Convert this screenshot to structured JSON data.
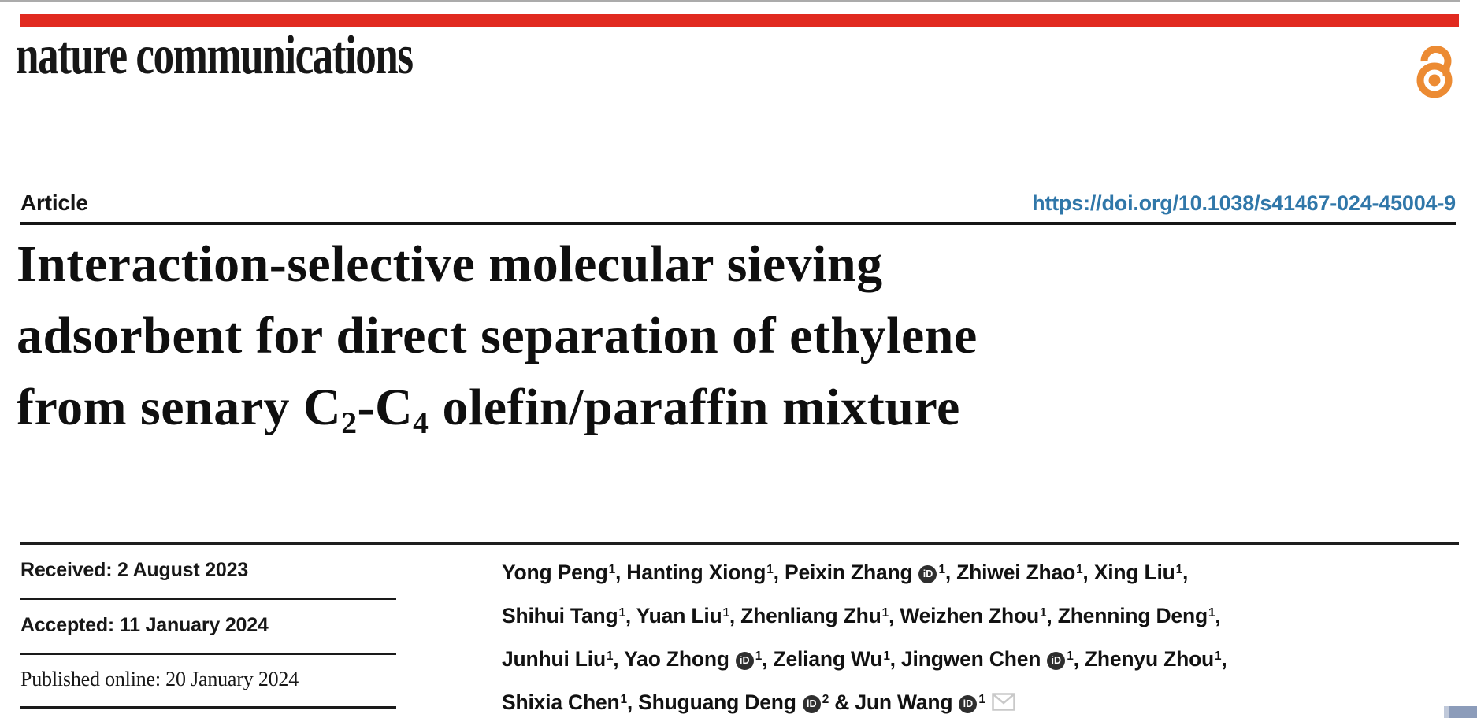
{
  "masthead": {
    "journal_name": "nature communications",
    "brand_bar_color": "#e12a20",
    "open_access_color": "#ec8b33"
  },
  "article_bar": {
    "type_label": "Article",
    "doi": "https://doi.org/10.1038/s41467-024-45004-9",
    "doi_color": "#3077a9"
  },
  "title": {
    "full_text": "Interaction-selective molecular sieving adsorbent for direct separation of ethylene from senary C2-C4 olefin/paraffin mixture",
    "lines": [
      [
        {
          "t": "Interaction-selective molecular sieving"
        }
      ],
      [
        {
          "t": "adsorbent for direct separation of ethylene"
        }
      ],
      [
        {
          "t": "from senary C"
        },
        {
          "sub": "2"
        },
        {
          "t": "-C"
        },
        {
          "sub": "4"
        },
        {
          "t": " olefin/paraffin mixture"
        }
      ]
    ]
  },
  "history": {
    "received": "Received: 2 August 2023",
    "accepted": "Accepted: 11 January 2024",
    "published": "Published online: 20 January 2024"
  },
  "authors": {
    "orcid_label": "iD",
    "lines": [
      [
        {
          "name": "Yong Peng",
          "sup": "1",
          "orcid": false,
          "trail": ", "
        },
        {
          "name": "Hanting Xiong",
          "sup": "1",
          "orcid": false,
          "trail": ", "
        },
        {
          "name": "Peixin Zhang",
          "sup": "1",
          "orcid": true,
          "trail": ", "
        },
        {
          "name": "Zhiwei Zhao",
          "sup": "1",
          "orcid": false,
          "trail": ", "
        },
        {
          "name": "Xing Liu",
          "sup": "1",
          "orcid": false,
          "trail": ","
        }
      ],
      [
        {
          "name": "Shihui Tang",
          "sup": "1",
          "orcid": false,
          "trail": ", "
        },
        {
          "name": "Yuan Liu",
          "sup": "1",
          "orcid": false,
          "trail": ", "
        },
        {
          "name": "Zhenliang Zhu",
          "sup": "1",
          "orcid": false,
          "trail": ", "
        },
        {
          "name": "Weizhen Zhou",
          "sup": "1",
          "orcid": false,
          "trail": ", "
        },
        {
          "name": "Zhenning Deng",
          "sup": "1",
          "orcid": false,
          "trail": ","
        }
      ],
      [
        {
          "name": "Junhui Liu",
          "sup": "1",
          "orcid": false,
          "trail": ", "
        },
        {
          "name": "Yao Zhong",
          "sup": "1",
          "orcid": true,
          "trail": ", "
        },
        {
          "name": "Zeliang Wu",
          "sup": "1",
          "orcid": false,
          "trail": ", "
        },
        {
          "name": "Jingwen Chen",
          "sup": "1",
          "orcid": true,
          "trail": ", "
        },
        {
          "name": "Zhenyu Zhou",
          "sup": "1",
          "orcid": false,
          "trail": ","
        }
      ],
      [
        {
          "name": "Shixia Chen",
          "sup": "1",
          "orcid": false,
          "trail": ", "
        },
        {
          "name": "Shuguang Deng",
          "sup": "2",
          "orcid": true,
          "trail": " & "
        },
        {
          "name": "Jun Wang",
          "sup": "1",
          "orcid": true,
          "envelope": true,
          "trail": ""
        }
      ]
    ]
  },
  "icons": {
    "open_access": "open-padlock",
    "orcid": "orcid-id-badge",
    "envelope": "email-envelope"
  },
  "misc": {
    "corner_square_color": "#8c9cba",
    "envelope_color": "#c9c9c9",
    "text_black": "#141414"
  }
}
